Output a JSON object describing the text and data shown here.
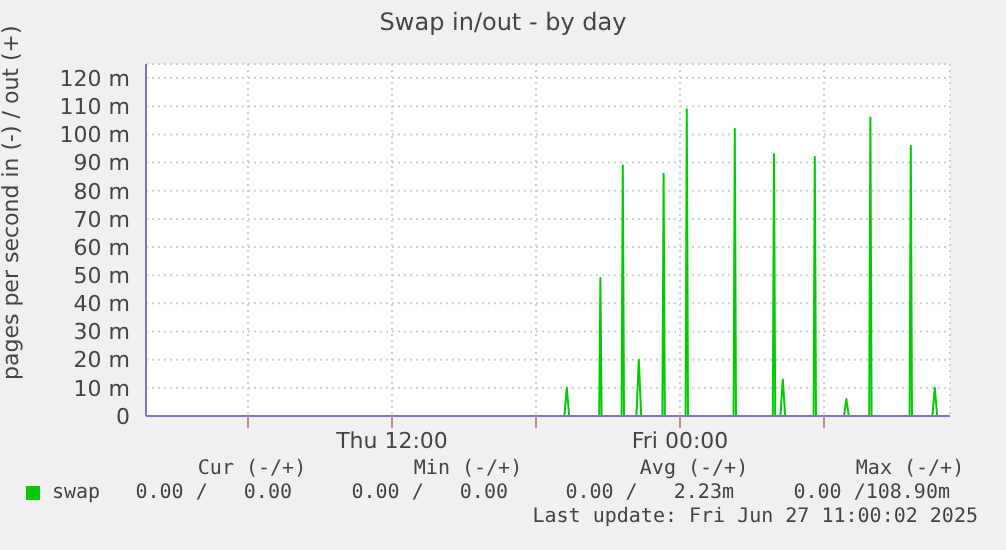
{
  "chart_data": {
    "type": "line",
    "title": "Swap in/out - by day",
    "ylabel": "pages per second in (-) / out (+)",
    "legend": "bottom",
    "grid": true,
    "marker": "none",
    "line_style": "solid",
    "xlim": [
      "2025-06-26T01:45",
      "2025-06-27T11:15"
    ],
    "xticks": [
      {
        "value": "2025-06-26T06:00",
        "label": null
      },
      {
        "value": "2025-06-26T12:00",
        "label": "Thu 12:00"
      },
      {
        "value": "2025-06-26T18:00",
        "label": null
      },
      {
        "value": "2025-06-27T00:00",
        "label": "Fri 00:00"
      },
      {
        "value": "2025-06-27T06:00",
        "label": null
      }
    ],
    "ylim": [
      0,
      125
    ],
    "yticks": [
      0,
      {
        "value": 10,
        "label": "10 m"
      },
      {
        "value": 20,
        "label": "20 m"
      },
      {
        "value": 30,
        "label": "30 m"
      },
      {
        "value": 40,
        "label": "40 m"
      },
      {
        "value": 50,
        "label": "50 m"
      },
      {
        "value": 60,
        "label": "60 m"
      },
      {
        "value": 70,
        "label": "70 m"
      },
      {
        "value": 80,
        "label": "80 m"
      },
      {
        "value": 90,
        "label": "90 m"
      },
      {
        "value": 100,
        "label": "100 m"
      },
      {
        "value": 110,
        "label": "110 m"
      },
      {
        "value": 120,
        "label": "120 m"
      }
    ],
    "series": [
      {
        "name": "swap",
        "color": "#00cc00",
        "x": [
          "2025-06-26T01:45",
          "2025-06-26T19:11",
          "2025-06-26T19:17",
          "2025-06-26T19:23",
          "2025-06-26T20:38",
          "2025-06-26T20:41",
          "2025-06-26T20:44",
          "2025-06-26T21:34",
          "2025-06-26T21:37",
          "2025-06-26T21:40",
          "2025-06-26T22:11",
          "2025-06-26T22:17",
          "2025-06-26T22:23",
          "2025-06-26T23:16",
          "2025-06-26T23:19",
          "2025-06-26T23:22",
          "2025-06-27T00:14",
          "2025-06-27T00:17",
          "2025-06-27T00:20",
          "2025-06-27T02:14",
          "2025-06-27T02:17",
          "2025-06-27T02:20",
          "2025-06-27T03:52",
          "2025-06-27T03:55",
          "2025-06-27T03:58",
          "2025-06-27T04:11",
          "2025-06-27T04:17",
          "2025-06-27T04:23",
          "2025-06-27T05:34",
          "2025-06-27T05:37",
          "2025-06-27T05:40",
          "2025-06-27T06:50",
          "2025-06-27T06:56",
          "2025-06-27T07:02",
          "2025-06-27T07:53",
          "2025-06-27T07:56",
          "2025-06-27T07:59",
          "2025-06-27T09:34",
          "2025-06-27T09:37",
          "2025-06-27T09:40",
          "2025-06-27T10:31",
          "2025-06-27T10:37",
          "2025-06-27T10:43",
          "2025-06-27T11:00"
        ],
        "values": [
          0,
          0,
          10,
          0,
          0,
          49,
          0,
          0,
          89,
          0,
          0,
          20,
          0,
          0,
          86,
          0,
          0,
          108.9,
          0,
          0,
          102,
          0,
          0,
          93,
          0,
          0,
          13,
          0,
          0,
          92,
          0,
          0,
          6,
          0,
          0,
          106,
          0,
          0,
          96,
          0,
          0,
          10,
          0,
          0
        ]
      }
    ],
    "annotations": [
      "Cur (-/+)",
      "Min (-/+)",
      "Avg (-/+)",
      "Max (-/+)",
      "0.00 /   0.00",
      "0.00 /   0.00",
      "0.00 /   2.23m",
      "0.00 /108.90m",
      "Last update: Fri Jun 27 11:00:02 2025"
    ]
  }
}
